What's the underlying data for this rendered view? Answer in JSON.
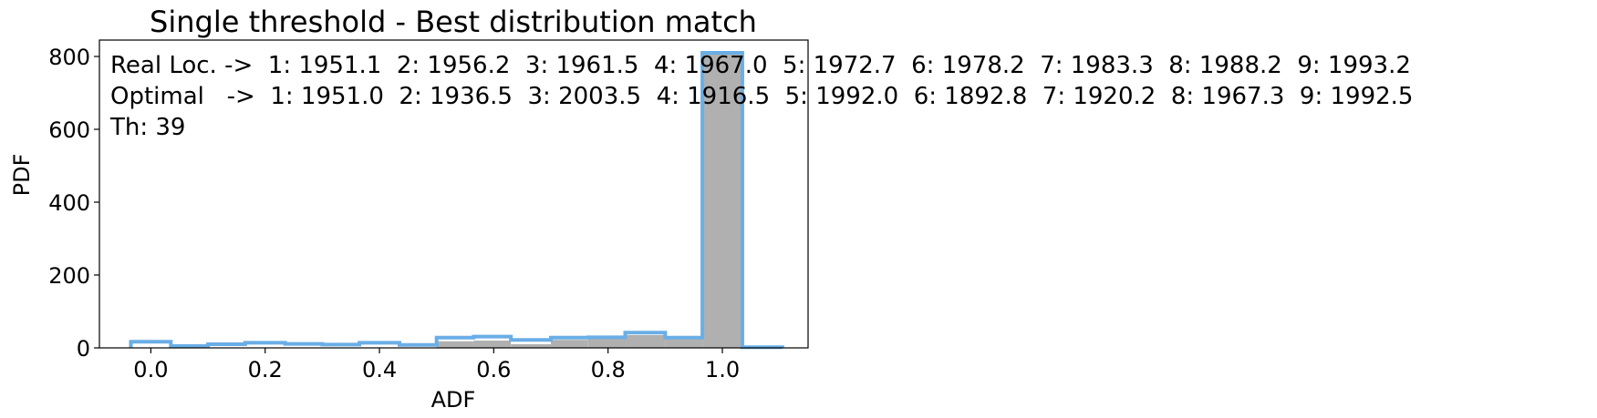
{
  "chart_data": {
    "type": "bar",
    "title": "Single threshold - Best distribution match",
    "xlabel": "ADF",
    "ylabel": "PDF",
    "xlim": [
      -0.09,
      1.15
    ],
    "ylim": [
      0,
      845
    ],
    "xticks": [
      0.0,
      0.2,
      0.4,
      0.6,
      0.8,
      1.0
    ],
    "xtick_labels": [
      "0.0",
      "0.2",
      "0.4",
      "0.6",
      "0.8",
      "1.0"
    ],
    "yticks": [
      0,
      200,
      400,
      600,
      800
    ],
    "ytick_labels": [
      "0",
      "200",
      "400",
      "600",
      "800"
    ],
    "grid": false,
    "series": [
      {
        "kind": "filled",
        "color": "#b0b0b0",
        "bins": [
          {
            "x0": 0.5,
            "x1": 0.565,
            "value": 18
          },
          {
            "x0": 0.565,
            "x1": 0.63,
            "value": 20
          },
          {
            "x0": 0.63,
            "x1": 0.7,
            "value": 10
          },
          {
            "x0": 0.7,
            "x1": 0.765,
            "value": 22
          },
          {
            "x0": 0.765,
            "x1": 0.83,
            "value": 25
          },
          {
            "x0": 0.83,
            "x1": 0.9,
            "value": 35
          },
          {
            "x0": 0.9,
            "x1": 0.965,
            "value": 25
          },
          {
            "x0": 0.965,
            "x1": 1.035,
            "value": 805
          }
        ]
      },
      {
        "kind": "step",
        "color": "#6aaee6",
        "bins": [
          {
            "x0": -0.035,
            "x1": 0.035,
            "value": 17
          },
          {
            "x0": 0.035,
            "x1": 0.1,
            "value": 5
          },
          {
            "x0": 0.1,
            "x1": 0.165,
            "value": 10
          },
          {
            "x0": 0.165,
            "x1": 0.235,
            "value": 14
          },
          {
            "x0": 0.235,
            "x1": 0.3,
            "value": 11
          },
          {
            "x0": 0.3,
            "x1": 0.365,
            "value": 9
          },
          {
            "x0": 0.365,
            "x1": 0.435,
            "value": 14
          },
          {
            "x0": 0.435,
            "x1": 0.5,
            "value": 8
          },
          {
            "x0": 0.5,
            "x1": 0.565,
            "value": 28
          },
          {
            "x0": 0.565,
            "x1": 0.63,
            "value": 31
          },
          {
            "x0": 0.63,
            "x1": 0.7,
            "value": 22
          },
          {
            "x0": 0.7,
            "x1": 0.765,
            "value": 28
          },
          {
            "x0": 0.765,
            "x1": 0.83,
            "value": 29
          },
          {
            "x0": 0.83,
            "x1": 0.9,
            "value": 42
          },
          {
            "x0": 0.9,
            "x1": 0.965,
            "value": 28
          },
          {
            "x0": 0.965,
            "x1": 1.035,
            "value": 810
          },
          {
            "x0": 1.035,
            "x1": 1.105,
            "value": 2
          }
        ]
      }
    ],
    "annotations": [
      "Real Loc. ->  1: 1951.1  2: 1956.2  3: 1961.5  4: 1967.0  5: 1972.7  6: 1978.2  7: 1983.3  8: 1988.2  9: 1993.2",
      "Optimal   ->  1: 1951.0  2: 1936.5  3: 2003.5  4: 1916.5  5: 1992.0  6: 1892.8  7: 1920.2  8: 1967.3  9: 1992.5",
      "Th: 39"
    ]
  }
}
